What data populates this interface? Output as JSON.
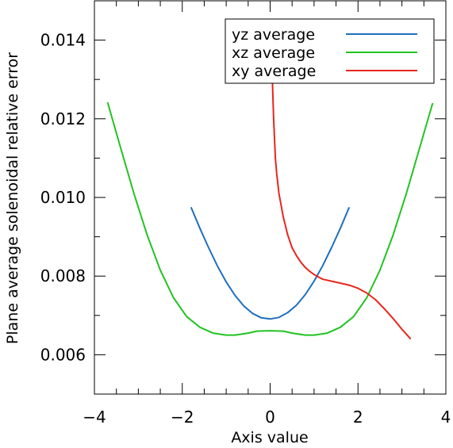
{
  "chart_data": {
    "type": "line",
    "title": "",
    "xlabel": "Axis value",
    "ylabel": "Plane average solenoidal relative error",
    "xlim": [
      -4,
      4
    ],
    "ylim": [
      0.005,
      0.015
    ],
    "xticks": [
      {
        "value": -4,
        "label": "−4"
      },
      {
        "value": -2,
        "label": "−2"
      },
      {
        "value": 0,
        "label": "0"
      },
      {
        "value": 2,
        "label": "2"
      },
      {
        "value": 4,
        "label": "4"
      }
    ],
    "yticks": [
      {
        "value": 0.006,
        "label": "0.006"
      },
      {
        "value": 0.008,
        "label": "0.008"
      },
      {
        "value": 0.01,
        "label": "0.010"
      },
      {
        "value": 0.012,
        "label": "0.012"
      },
      {
        "value": 0.014,
        "label": "0.014"
      }
    ],
    "x_minor_step": 0.5,
    "y_minor_step": 0.001,
    "grid": false,
    "legend_position": "top-right",
    "series": [
      {
        "name": "yz average",
        "color": "#1f6fbf",
        "points": [
          [
            -1.8,
            0.00975
          ],
          [
            -1.6,
            0.00922
          ],
          [
            -1.4,
            0.00872
          ],
          [
            -1.2,
            0.00826
          ],
          [
            -1.0,
            0.00785
          ],
          [
            -0.8,
            0.00751
          ],
          [
            -0.6,
            0.00724
          ],
          [
            -0.4,
            0.00705
          ],
          [
            -0.2,
            0.00694
          ],
          [
            0.0,
            0.00691
          ],
          [
            0.2,
            0.00695
          ],
          [
            0.4,
            0.00707
          ],
          [
            0.6,
            0.00726
          ],
          [
            0.8,
            0.00753
          ],
          [
            1.0,
            0.00787
          ],
          [
            1.2,
            0.00827
          ],
          [
            1.4,
            0.00873
          ],
          [
            1.6,
            0.00922
          ],
          [
            1.8,
            0.00975
          ]
        ]
      },
      {
        "name": "xz average",
        "color": "#22c322",
        "points": [
          [
            -3.7,
            0.01242
          ],
          [
            -3.4,
            0.01125
          ],
          [
            -3.1,
            0.0101
          ],
          [
            -2.8,
            0.00905
          ],
          [
            -2.5,
            0.00815
          ],
          [
            -2.2,
            0.00745
          ],
          [
            -1.9,
            0.00697
          ],
          [
            -1.6,
            0.0067
          ],
          [
            -1.3,
            0.00655
          ],
          [
            -1.0,
            0.0065
          ],
          [
            -0.8,
            0.0065
          ],
          [
            -0.5,
            0.00655
          ],
          [
            -0.3,
            0.0066
          ],
          [
            0.0,
            0.00661
          ],
          [
            0.3,
            0.0066
          ],
          [
            0.5,
            0.00655
          ],
          [
            0.8,
            0.0065
          ],
          [
            1.0,
            0.0065
          ],
          [
            1.3,
            0.00655
          ],
          [
            1.6,
            0.0067
          ],
          [
            1.9,
            0.00697
          ],
          [
            2.2,
            0.00745
          ],
          [
            2.5,
            0.00815
          ],
          [
            2.8,
            0.00905
          ],
          [
            3.1,
            0.0101
          ],
          [
            3.4,
            0.01125
          ],
          [
            3.7,
            0.0124
          ]
        ]
      },
      {
        "name": "xy average",
        "color": "#e8261c",
        "points": [
          [
            0.05,
            0.013
          ],
          [
            0.08,
            0.012
          ],
          [
            0.12,
            0.011
          ],
          [
            0.15,
            0.0106
          ],
          [
            0.2,
            0.0101
          ],
          [
            0.3,
            0.0095
          ],
          [
            0.4,
            0.00905
          ],
          [
            0.5,
            0.00872
          ],
          [
            0.6,
            0.00852
          ],
          [
            0.7,
            0.00835
          ],
          [
            0.8,
            0.00822
          ],
          [
            0.9,
            0.00812
          ],
          [
            1.0,
            0.00804
          ],
          [
            1.2,
            0.00792
          ],
          [
            1.4,
            0.00787
          ],
          [
            1.6,
            0.00782
          ],
          [
            1.8,
            0.00777
          ],
          [
            2.0,
            0.00769
          ],
          [
            2.2,
            0.00757
          ],
          [
            2.4,
            0.0074
          ],
          [
            2.6,
            0.00717
          ],
          [
            2.8,
            0.00692
          ],
          [
            3.0,
            0.00665
          ],
          [
            3.2,
            0.0064
          ]
        ]
      }
    ]
  }
}
